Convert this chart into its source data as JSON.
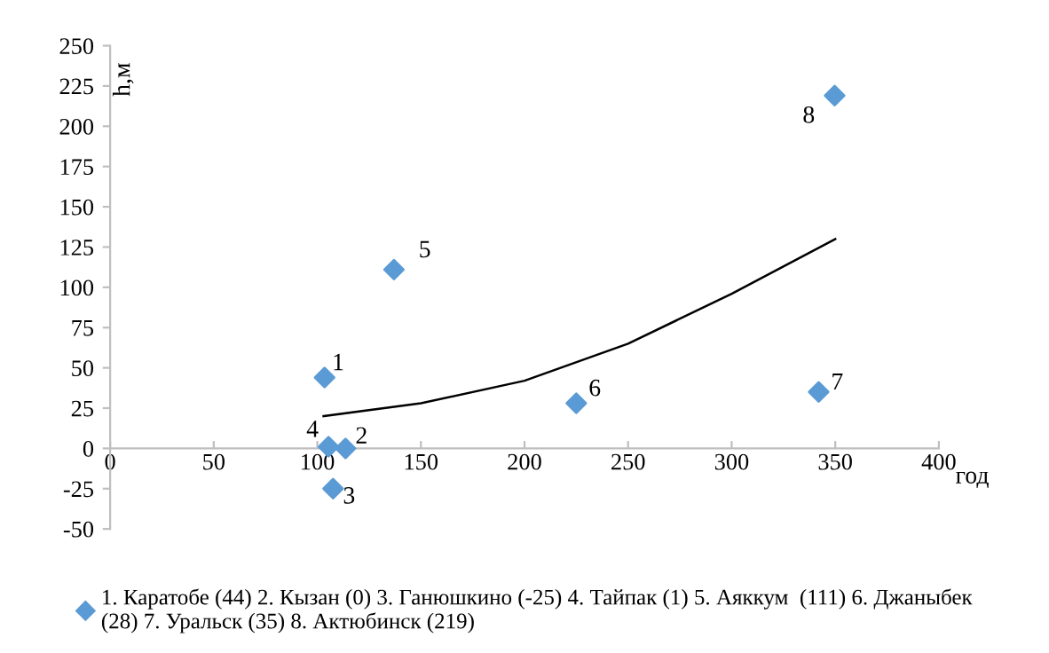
{
  "chart_data": {
    "type": "scatter",
    "xlabel": "год",
    "ylabel": "h,м",
    "xlim": [
      0,
      400
    ],
    "xticks": [
      0,
      50,
      100,
      150,
      200,
      250,
      300,
      350,
      400
    ],
    "ylim": [
      -50,
      250
    ],
    "yticks": [
      -50,
      -25,
      0,
      25,
      50,
      75,
      100,
      125,
      150,
      175,
      200,
      225,
      250
    ],
    "grid": false,
    "legend": "bottom",
    "marker": "diamond",
    "series": [
      {
        "name": "1. Каратобе (44) 2. Кызан (0) 3. Ганюшкино (-25) 4. Тайпак (1) 5. Аяккум  (111) 6. Джаныбек (28) 7. Уральск (35) 8. Актюбинск (219)",
        "color": "#5b9bd5",
        "x": [
          103.5,
          113.6,
          107.6,
          105.4,
          137,
          225,
          342,
          349.7
        ],
        "values": [
          44,
          0,
          -25,
          1,
          111,
          28,
          35,
          219
        ]
      },
      {
        "type": "line",
        "color": "#000000",
        "line_style": "solid",
        "marker": "none",
        "x": [
          103,
          150,
          200,
          250,
          300,
          350
        ],
        "values": [
          20,
          28,
          42,
          65,
          96,
          130
        ]
      }
    ],
    "annotations": [
      {
        "text": "1",
        "x": 103.5,
        "y": 44
      },
      {
        "text": "2",
        "x": 113.6,
        "y": 0
      },
      {
        "text": "3",
        "x": 107.6,
        "y": -25
      },
      {
        "text": "4",
        "x": 105.4,
        "y": 1
      },
      {
        "text": "5",
        "x": 137,
        "y": 111
      },
      {
        "text": "6",
        "x": 225,
        "y": 28
      },
      {
        "text": "7",
        "x": 342,
        "y": 35
      },
      {
        "text": "8",
        "x": 349.7,
        "y": 219
      }
    ]
  }
}
